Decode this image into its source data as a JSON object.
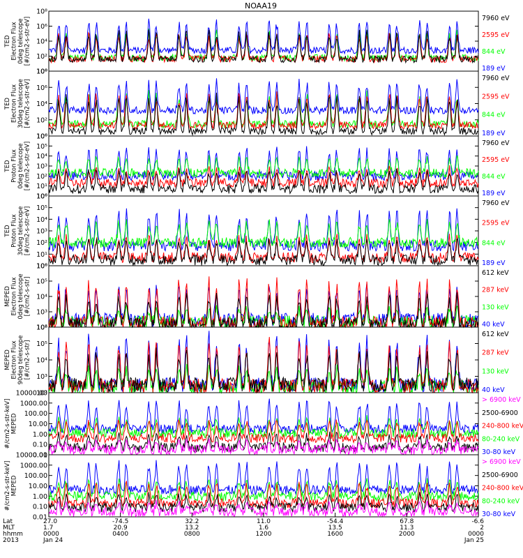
{
  "title": "NOAA19",
  "colors": {
    "black": "#000000",
    "red": "#ff0000",
    "green": "#00ff00",
    "blue": "#0000ff",
    "magenta": "#ff00ff"
  },
  "chart_data": [
    {
      "type": "line",
      "ylabel": [
        "TED",
        "Electron Flux",
        "0deg telescope",
        "[#/cm2-s-str-eV]"
      ],
      "y_scale": "log",
      "ylim": [
        1,
        100000000
      ],
      "y_ticks": [
        "10⁰",
        "10²",
        "10⁴",
        "10⁶",
        "10⁸"
      ],
      "series": [
        {
          "name": "7960 eV",
          "color": "#000000",
          "baseline": 40,
          "peak": 400000
        },
        {
          "name": "2595 eV",
          "color": "#ff0000",
          "baseline": 40,
          "peak": 200000
        },
        {
          "name": "844 eV",
          "color": "#00ff00",
          "baseline": 60,
          "peak": 400000
        },
        {
          "name": "189 eV",
          "color": "#0000ff",
          "baseline": 600,
          "peak": 10000000
        }
      ]
    },
    {
      "type": "line",
      "ylabel": [
        "TED",
        "Electron Flux",
        "30deg telescope",
        "[#/cm2-s-str-eV]"
      ],
      "y_scale": "log",
      "ylim": [
        1,
        100000000
      ],
      "y_ticks": [
        "10⁰",
        "10²",
        "10⁴",
        "10⁶",
        "10⁸"
      ],
      "series": [
        {
          "name": "7960 eV",
          "color": "#000000",
          "baseline": 4,
          "peak": 200000
        },
        {
          "name": "2595 eV",
          "color": "#ff0000",
          "baseline": 20,
          "peak": 400000
        },
        {
          "name": "844 eV",
          "color": "#00ff00",
          "baseline": 30,
          "peak": 400000
        },
        {
          "name": "189 eV",
          "color": "#0000ff",
          "baseline": 1500,
          "peak": 10000000
        }
      ]
    },
    {
      "type": "line",
      "ylabel": [
        "TED",
        "Proton Flux",
        "0deg telescope",
        "[#/cm2-s-str-eV]"
      ],
      "y_scale": "log",
      "ylim": [
        1,
        1000000
      ],
      "y_ticks": [
        "10⁰",
        "10¹",
        "10²",
        "10³",
        "10⁴",
        "10⁵",
        "10⁶"
      ],
      "series": [
        {
          "name": "7960 eV",
          "color": "#000000",
          "baseline": 5,
          "peak": 500
        },
        {
          "name": "2595 eV",
          "color": "#ff0000",
          "baseline": 20,
          "peak": 1000
        },
        {
          "name": "844 eV",
          "color": "#00ff00",
          "baseline": 200,
          "peak": 10000
        },
        {
          "name": "189 eV",
          "color": "#0000ff",
          "baseline": 100,
          "peak": 100000
        }
      ]
    },
    {
      "type": "line",
      "ylabel": [
        "TED",
        "Proton Flux",
        "30deg telescope",
        "[#/cm2-s-str-eV]"
      ],
      "y_scale": "log",
      "ylim": [
        1,
        1000000
      ],
      "y_ticks": [
        "10⁰",
        "10¹",
        "10²",
        "10³",
        "10⁴",
        "10⁵",
        "10⁶"
      ],
      "series": [
        {
          "name": "7960 eV",
          "color": "#000000",
          "baseline": 3,
          "peak": 300
        },
        {
          "name": "2595 eV",
          "color": "#ff0000",
          "baseline": 5,
          "peak": 500
        },
        {
          "name": "844 eV",
          "color": "#00ff00",
          "baseline": 100,
          "peak": 10000
        },
        {
          "name": "189 eV",
          "color": "#0000ff",
          "baseline": 50,
          "peak": 100000
        }
      ]
    },
    {
      "type": "line",
      "ylabel": [
        "MEPED",
        "Electron Flux",
        "0deg telescope",
        "[#/cm2-s-str]"
      ],
      "y_scale": "log",
      "ylim": [
        100,
        1000000
      ],
      "y_ticks": [
        "10²",
        "10³",
        "10⁴",
        "10⁵",
        "10⁶"
      ],
      "series": [
        {
          "name": "612 keV",
          "color": "#000000",
          "baseline": 150,
          "peak": 20000
        },
        {
          "name": "287 keV",
          "color": "#ff0000",
          "baseline": 180,
          "peak": 200000
        },
        {
          "name": "130 keV",
          "color": "#00ff00",
          "baseline": 200,
          "peak": 2000
        },
        {
          "name": "40 keV",
          "color": "#0000ff",
          "baseline": 300,
          "peak": 100000
        }
      ]
    },
    {
      "type": "line",
      "ylabel": [
        "MEPED",
        "Electron Flux",
        "90deg telescope",
        "[#/cm2-s-str]"
      ],
      "y_scale": "log",
      "ylim": [
        100,
        1000000
      ],
      "y_ticks": [
        "10²",
        "10³",
        "10⁴",
        "10⁵",
        "10⁶"
      ],
      "series": [
        {
          "name": "612 keV",
          "color": "#000000",
          "baseline": 300,
          "peak": 50000
        },
        {
          "name": "287 keV",
          "color": "#ff0000",
          "baseline": 250,
          "peak": 200000
        },
        {
          "name": "130 keV",
          "color": "#00ff00",
          "baseline": 200,
          "peak": 5000
        },
        {
          "name": "40 keV",
          "color": "#0000ff",
          "baseline": 300,
          "peak": 500000
        }
      ]
    },
    {
      "type": "line",
      "ylabel": [
        "#/cm2-s-str-keV]",
        "MEPED"
      ],
      "y_scale": "log",
      "ylim": [
        0.01,
        10000
      ],
      "y_ticks": [
        "0.01",
        "0.10",
        "1.00",
        "10.00",
        "100.00",
        "1000.00",
        "10000.00"
      ],
      "series": [
        {
          "name": "> 6900 keV",
          "color": "#ff00ff",
          "baseline": 0.03,
          "peak": 0.3
        },
        {
          "name": "2500-6900",
          "color": "#000000",
          "baseline": 0.05,
          "peak": 1.5
        },
        {
          "name": "240-800 keV",
          "color": "#ff0000",
          "baseline": 0.4,
          "peak": 30
        },
        {
          "name": "80-240 keV",
          "color": "#00ff00",
          "baseline": 1.2,
          "peak": 50
        },
        {
          "name": "30-80 keV",
          "color": "#0000ff",
          "baseline": 3,
          "peak": 3000
        }
      ]
    },
    {
      "type": "line",
      "ylabel": [
        "#/cm2-s-str-keV]",
        "MEPED"
      ],
      "y_scale": "log",
      "ylim": [
        0.01,
        10000
      ],
      "y_ticks": [
        "0.01",
        "0.10",
        "1.00",
        "10.00",
        "100.00",
        "1000.00",
        "10000.00"
      ],
      "series": [
        {
          "name": "> 6900 keV",
          "color": "#ff00ff",
          "baseline": 0.03,
          "peak": 0.3
        },
        {
          "name": "2500-6900",
          "color": "#000000",
          "baseline": 0.08,
          "peak": 2
        },
        {
          "name": "240-800 keV",
          "color": "#ff0000",
          "baseline": 0.2,
          "peak": 30
        },
        {
          "name": "80-240 keV",
          "color": "#00ff00",
          "baseline": 1.0,
          "peak": 50
        },
        {
          "name": "30-80 keV",
          "color": "#0000ff",
          "baseline": 4,
          "peak": 3000
        }
      ]
    }
  ],
  "x_axis": {
    "row_labels": [
      "Lat",
      "MLT",
      "hhmm",
      "2013"
    ],
    "ticks": [
      {
        "values": [
          "27.0",
          "1.7",
          "0000",
          "Jan 24"
        ]
      },
      {
        "values": [
          "-74.5",
          "20.9",
          "0400",
          ""
        ]
      },
      {
        "values": [
          "32.2",
          "13.2",
          "0800",
          ""
        ]
      },
      {
        "values": [
          "11.0",
          "1.6",
          "1200",
          ""
        ]
      },
      {
        "values": [
          "-54.4",
          "13.5",
          "1600",
          ""
        ]
      },
      {
        "values": [
          "67.8",
          "11.3",
          "2000",
          ""
        ]
      },
      {
        "values": [
          "-6.6",
          "2",
          "0000",
          "Jan 25"
        ]
      }
    ]
  }
}
